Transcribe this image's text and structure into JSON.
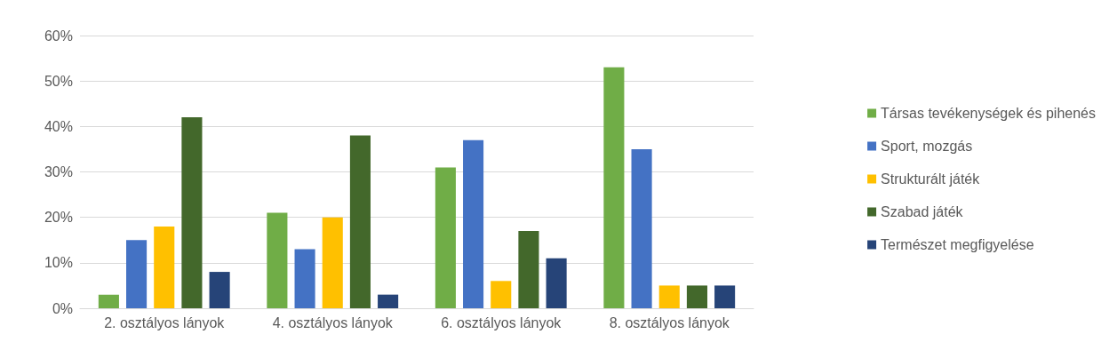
{
  "chart_data": {
    "type": "bar",
    "categories": [
      "2. osztályos lányok",
      "4. osztályos lányok",
      "6. osztályos lányok",
      "8. osztályos lányok"
    ],
    "series": [
      {
        "name": "Társas tevékenységek és pihenés",
        "color": "#70ad47",
        "values": [
          3,
          21,
          31,
          53
        ]
      },
      {
        "name": "Sport, mozgás",
        "color": "#4472c4",
        "values": [
          15,
          13,
          37,
          35
        ]
      },
      {
        "name": "Strukturált játék",
        "color": "#ffc000",
        "values": [
          18,
          20,
          6,
          5
        ]
      },
      {
        "name": "Szabad játék",
        "color": "#43682b",
        "values": [
          42,
          38,
          17,
          5
        ]
      },
      {
        "name": "Természet megfigyelése",
        "color": "#264478",
        "values": [
          8,
          3,
          11,
          5
        ]
      }
    ],
    "ylim": [
      0,
      60
    ],
    "yticks": [
      {
        "value": 0,
        "label": "0%"
      },
      {
        "value": 10,
        "label": "10%"
      },
      {
        "value": 20,
        "label": "20%"
      },
      {
        "value": 30,
        "label": "30%"
      },
      {
        "value": 40,
        "label": "40%"
      },
      {
        "value": 50,
        "label": "50%"
      },
      {
        "value": 60,
        "label": "60%"
      }
    ],
    "grid": "y",
    "legend": "right"
  }
}
